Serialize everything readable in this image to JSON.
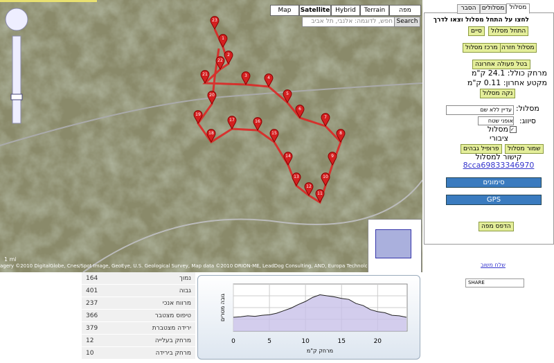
{
  "map": {
    "types": [
      "Map",
      "Satellite",
      "Hybrid",
      "Terrain",
      "מפה"
    ],
    "search_placeholder": "חפש, לדוגמה: אלנבי, תל אביב",
    "search_button": "Search",
    "scale": "1 mi",
    "attribution": "agery ©2010 DigitalGlobe, Cnes/Spot Image, GeoEye, U.S. Geological Survey, Map data ©2010 ORION-ME, LeadDog Consulting, AND, Europa Technologies - Terms of Use",
    "markers": [
      "23",
      "1",
      "2",
      "22",
      "21",
      "3",
      "4",
      "5",
      "6",
      "7",
      "8",
      "9",
      "10",
      "11",
      "12",
      "13",
      "14",
      "15",
      "16",
      "17",
      "18",
      "19",
      "20"
    ]
  },
  "panel": {
    "tabs": [
      "מסלול",
      "מסלולים",
      "הסבר"
    ],
    "instruction": "לחצו על התחל מסלול וצאו לדרך",
    "start": "התחל מסלול",
    "finish": "סיים",
    "return_route": "מסלול חזרה",
    "center_route": "מרכז מסלול",
    "undo": "בטל פעולה אחרונה",
    "total_distance": "מרחק כולל: 24.1 ק\"מ",
    "last_segment": "מקטע אחרון: 0.11 ק\"מ",
    "clear": "נקה מסלול",
    "route_label": "מסלול:",
    "route_name": "עדיין ללא שם",
    "class_label": "סיווג:",
    "class_value": "אופני שטח",
    "public": "מסלול ציבורי",
    "save": "שמור מסלול",
    "profile": "פרופיל גבהים",
    "link_label": "קישור למסלול",
    "link": "8cca69833346970",
    "marks": "סימונים",
    "gps": "GPS",
    "print": "הדפס מפה",
    "feedback": "שלח משוב",
    "share": "SHARE"
  },
  "stats": {
    "rows": [
      [
        "נמוך",
        "164"
      ],
      [
        "גבוה",
        "401"
      ],
      [
        "מרווח אנכי",
        "237"
      ],
      [
        "טיפוס מצטבר",
        "366"
      ],
      [
        "ירידה מצטברת",
        "379"
      ],
      [
        "מרחק בעלייה",
        "12"
      ],
      [
        "מרחק בירידה",
        "10"
      ]
    ]
  },
  "chart_data": {
    "type": "area",
    "ylabel": "גובה מטרים",
    "xlabel": "מרחק ק\"מ",
    "x": [
      0,
      1,
      2,
      3,
      4,
      5,
      6,
      7,
      8,
      9,
      10,
      11,
      12,
      13,
      14,
      15,
      16,
      17,
      18,
      19,
      20,
      21,
      22,
      23,
      24
    ],
    "values": [
      175,
      180,
      190,
      185,
      195,
      200,
      215,
      240,
      265,
      300,
      330,
      370,
      395,
      385,
      375,
      360,
      350,
      310,
      290,
      250,
      230,
      220,
      195,
      190,
      175
    ],
    "color": "#c8c0e8",
    "xlim": [
      0,
      24.1
    ],
    "ylim": [
      40,
      500
    ],
    "xticks": [
      0,
      5,
      10,
      15,
      20
    ]
  }
}
